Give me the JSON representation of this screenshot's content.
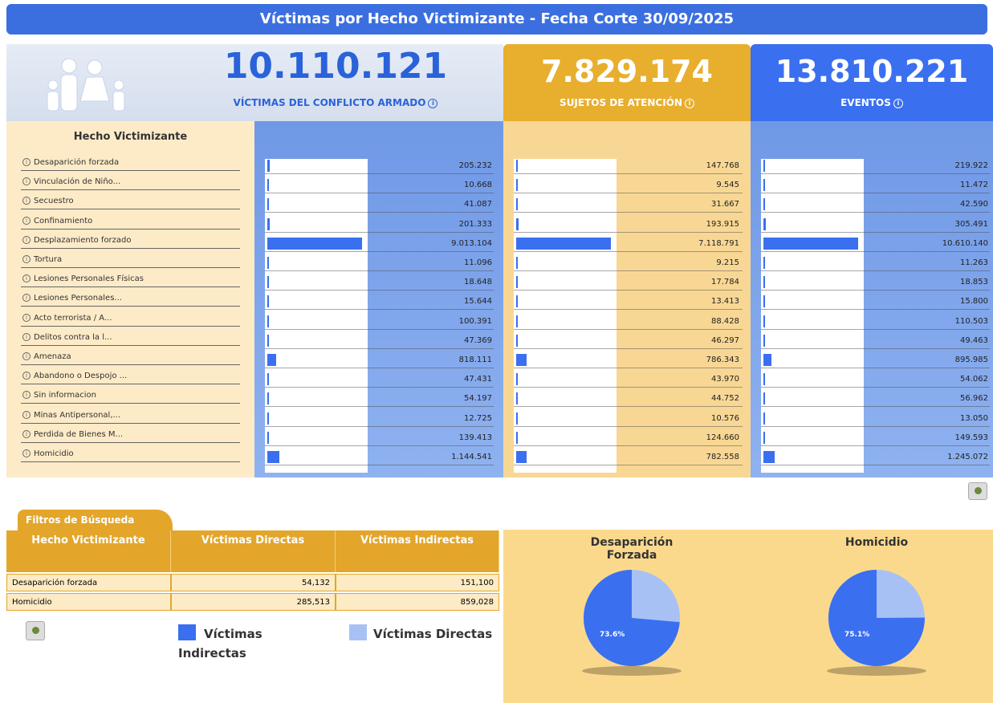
{
  "header": {
    "title": "Víctimas por Hecho Victimizante - Fecha Corte 30/09/2025"
  },
  "cards": [
    {
      "value": "10.110.121",
      "label": "VÍCTIMAS DEL CONFLICTO ARMADO"
    },
    {
      "value": "7.829.174",
      "label": "SUJETOS DE ATENCIÓN"
    },
    {
      "value": "13.810.221",
      "label": "EVENTOS"
    }
  ],
  "list_title": "Hecho Victimizante",
  "rows": [
    {
      "name": "Desaparición forzada",
      "cols": [
        {
          "value": 205232,
          "label": "205.232"
        },
        {
          "value": 147768,
          "label": "147.768"
        },
        {
          "value": 219922,
          "label": "219.922"
        }
      ]
    },
    {
      "name": "Vinculación de Niño...",
      "cols": [
        {
          "value": 10668,
          "label": "10.668"
        },
        {
          "value": 9545,
          "label": "9.545"
        },
        {
          "value": 11472,
          "label": "11.472"
        }
      ]
    },
    {
      "name": "Secuestro",
      "cols": [
        {
          "value": 41087,
          "label": "41.087"
        },
        {
          "value": 31667,
          "label": "31.667"
        },
        {
          "value": 42590,
          "label": "42.590"
        }
      ]
    },
    {
      "name": "Confinamiento",
      "cols": [
        {
          "value": 201333,
          "label": "201.333"
        },
        {
          "value": 193915,
          "label": "193.915"
        },
        {
          "value": 305491,
          "label": "305.491"
        }
      ]
    },
    {
      "name": "Desplazamiento forzado",
      "cols": [
        {
          "value": 9013104,
          "label": "9.013.104"
        },
        {
          "value": 7118791,
          "label": "7.118.791"
        },
        {
          "value": 10610140,
          "label": "10.610.140"
        }
      ]
    },
    {
      "name": "Tortura",
      "cols": [
        {
          "value": 11096,
          "label": "11.096"
        },
        {
          "value": 9215,
          "label": "9.215"
        },
        {
          "value": 11263,
          "label": "11.263"
        }
      ]
    },
    {
      "name": "Lesiones Personales Físicas",
      "cols": [
        {
          "value": 18648,
          "label": "18.648"
        },
        {
          "value": 17784,
          "label": "17.784"
        },
        {
          "value": 18853,
          "label": "18.853"
        }
      ]
    },
    {
      "name": "Lesiones Personales...",
      "cols": [
        {
          "value": 15644,
          "label": "15.644"
        },
        {
          "value": 13413,
          "label": "13.413"
        },
        {
          "value": 15800,
          "label": "15.800"
        }
      ]
    },
    {
      "name": "Acto terrorista / A...",
      "cols": [
        {
          "value": 100391,
          "label": "100.391"
        },
        {
          "value": 88428,
          "label": "88.428"
        },
        {
          "value": 110503,
          "label": "110.503"
        }
      ]
    },
    {
      "name": "Delitos contra la l...",
      "cols": [
        {
          "value": 47369,
          "label": "47.369"
        },
        {
          "value": 46297,
          "label": "46.297"
        },
        {
          "value": 49463,
          "label": "49.463"
        }
      ]
    },
    {
      "name": "Amenaza",
      "cols": [
        {
          "value": 818111,
          "label": "818.111"
        },
        {
          "value": 786343,
          "label": "786.343"
        },
        {
          "value": 895985,
          "label": "895.985"
        }
      ]
    },
    {
      "name": "Abandono o Despojo ...",
      "cols": [
        {
          "value": 47431,
          "label": "47.431"
        },
        {
          "value": 43970,
          "label": "43.970"
        },
        {
          "value": 54062,
          "label": "54.062"
        }
      ]
    },
    {
      "name": "Sin informacion",
      "cols": [
        {
          "value": 54197,
          "label": "54.197"
        },
        {
          "value": 44752,
          "label": "44.752"
        },
        {
          "value": 56962,
          "label": "56.962"
        }
      ]
    },
    {
      "name": "Minas Antipersonal,...",
      "cols": [
        {
          "value": 12725,
          "label": "12.725"
        },
        {
          "value": 10576,
          "label": "10.576"
        },
        {
          "value": 13050,
          "label": "13.050"
        }
      ]
    },
    {
      "name": "Perdida de Bienes M...",
      "cols": [
        {
          "value": 139413,
          "label": "139.413"
        },
        {
          "value": 124660,
          "label": "124.660"
        },
        {
          "value": 149593,
          "label": "149.593"
        }
      ]
    },
    {
      "name": "Homicidio",
      "cols": [
        {
          "value": 1144541,
          "label": "1.144.541"
        },
        {
          "value": 782558,
          "label": "782.558"
        },
        {
          "value": 1245072,
          "label": "1.245.072"
        }
      ]
    }
  ],
  "filters": {
    "tab": "Filtros de Búsqueda",
    "table": {
      "header": [
        "Hecho Victimizante",
        "Víctimas Directas",
        "Víctimas Indirectas"
      ],
      "rows": [
        [
          "Desaparición forzada",
          "54,132",
          "151,100"
        ],
        [
          "Homicidio",
          "285,513",
          "859,028"
        ]
      ]
    }
  },
  "legend": [
    "Víctimas Indirectas",
    "Víctimas Directas"
  ],
  "pies": [
    {
      "title": "Desaparición Forzada",
      "value": 73.6,
      "label": "73.6%"
    },
    {
      "title": "Homicidio",
      "value": 75.1,
      "label": "75.1%"
    }
  ]
}
